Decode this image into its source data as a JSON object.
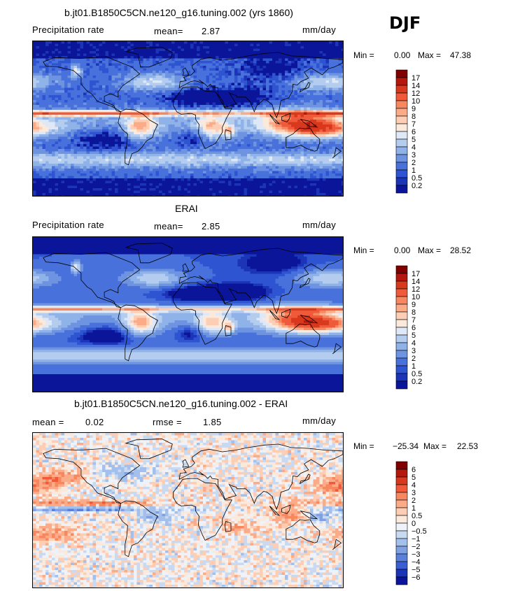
{
  "season": "DJF",
  "panels": [
    {
      "title": "b.jt01.B1850C5CN.ne120_g16.tuning.002 (yrs 1860)",
      "variable": "Precipitation rate",
      "stat1_label": "mean=",
      "stat1_value": "2.87",
      "stat2_label": "",
      "stat2_value": "",
      "units": "mm/day",
      "min_label": "Min =",
      "min_value": "0.00",
      "max_label": "Max =",
      "max_value": "47.38",
      "colorbar": {
        "labels": [
          "17",
          "14",
          "12",
          "10",
          "9",
          "8",
          "7",
          "6",
          "5",
          "4",
          "3",
          "2",
          "1",
          "0.5",
          "0.2"
        ],
        "colors": [
          "#800000",
          "#b2180e",
          "#d8381c",
          "#ef5a3a",
          "#f7875f",
          "#fbab88",
          "#fdcdb4",
          "#fbe9dc",
          "#dfe8f6",
          "#b4cdef",
          "#8fb2e9",
          "#6d93e1",
          "#4871dc",
          "#2f54d1",
          "#1b34b8",
          "#0b159a"
        ]
      },
      "field": "model"
    },
    {
      "title": "ERAI",
      "variable": "Precipitation rate",
      "stat1_label": "mean=",
      "stat1_value": "2.85",
      "stat2_label": "",
      "stat2_value": "",
      "units": "mm/day",
      "min_label": "Min =",
      "min_value": "0.00",
      "max_label": "Max =",
      "max_value": "28.52",
      "colorbar": {
        "labels": [
          "17",
          "14",
          "12",
          "10",
          "9",
          "8",
          "7",
          "6",
          "5",
          "4",
          "3",
          "2",
          "1",
          "0.5",
          "0.2"
        ],
        "colors": [
          "#800000",
          "#b2180e",
          "#d8381c",
          "#ef5a3a",
          "#f7875f",
          "#fbab88",
          "#fdcdb4",
          "#fbe9dc",
          "#dfe8f6",
          "#b4cdef",
          "#8fb2e9",
          "#6d93e1",
          "#4871dc",
          "#2f54d1",
          "#1b34b8",
          "#0b159a"
        ]
      },
      "field": "obs"
    },
    {
      "title": "b.jt01.B1850C5CN.ne120_g16.tuning.002 - ERAI",
      "variable": "",
      "stat1_label": "mean =",
      "stat1_value": "0.02",
      "stat2_label": "rmse =",
      "stat2_value": "1.85",
      "units": "mm/day",
      "min_label": "Min =",
      "min_value": "−25.34",
      "max_label": "Max =",
      "max_value": "22.53",
      "colorbar": {
        "labels": [
          "6",
          "5",
          "4",
          "3",
          "2",
          "1",
          "0.5",
          "0",
          "−0.5",
          "−1",
          "−2",
          "−3",
          "−4",
          "−5",
          "−6"
        ],
        "colors": [
          "#800000",
          "#b2180e",
          "#d8381c",
          "#ef5a3a",
          "#f7875f",
          "#fbab88",
          "#fdcdb4",
          "#fbe9dc",
          "#eef2fa",
          "#c8d9f2",
          "#a3bfec",
          "#7fa1e4",
          "#5a80dc",
          "#3a5fd3",
          "#1b34b8",
          "#0b159a"
        ]
      },
      "field": "diff"
    }
  ]
}
